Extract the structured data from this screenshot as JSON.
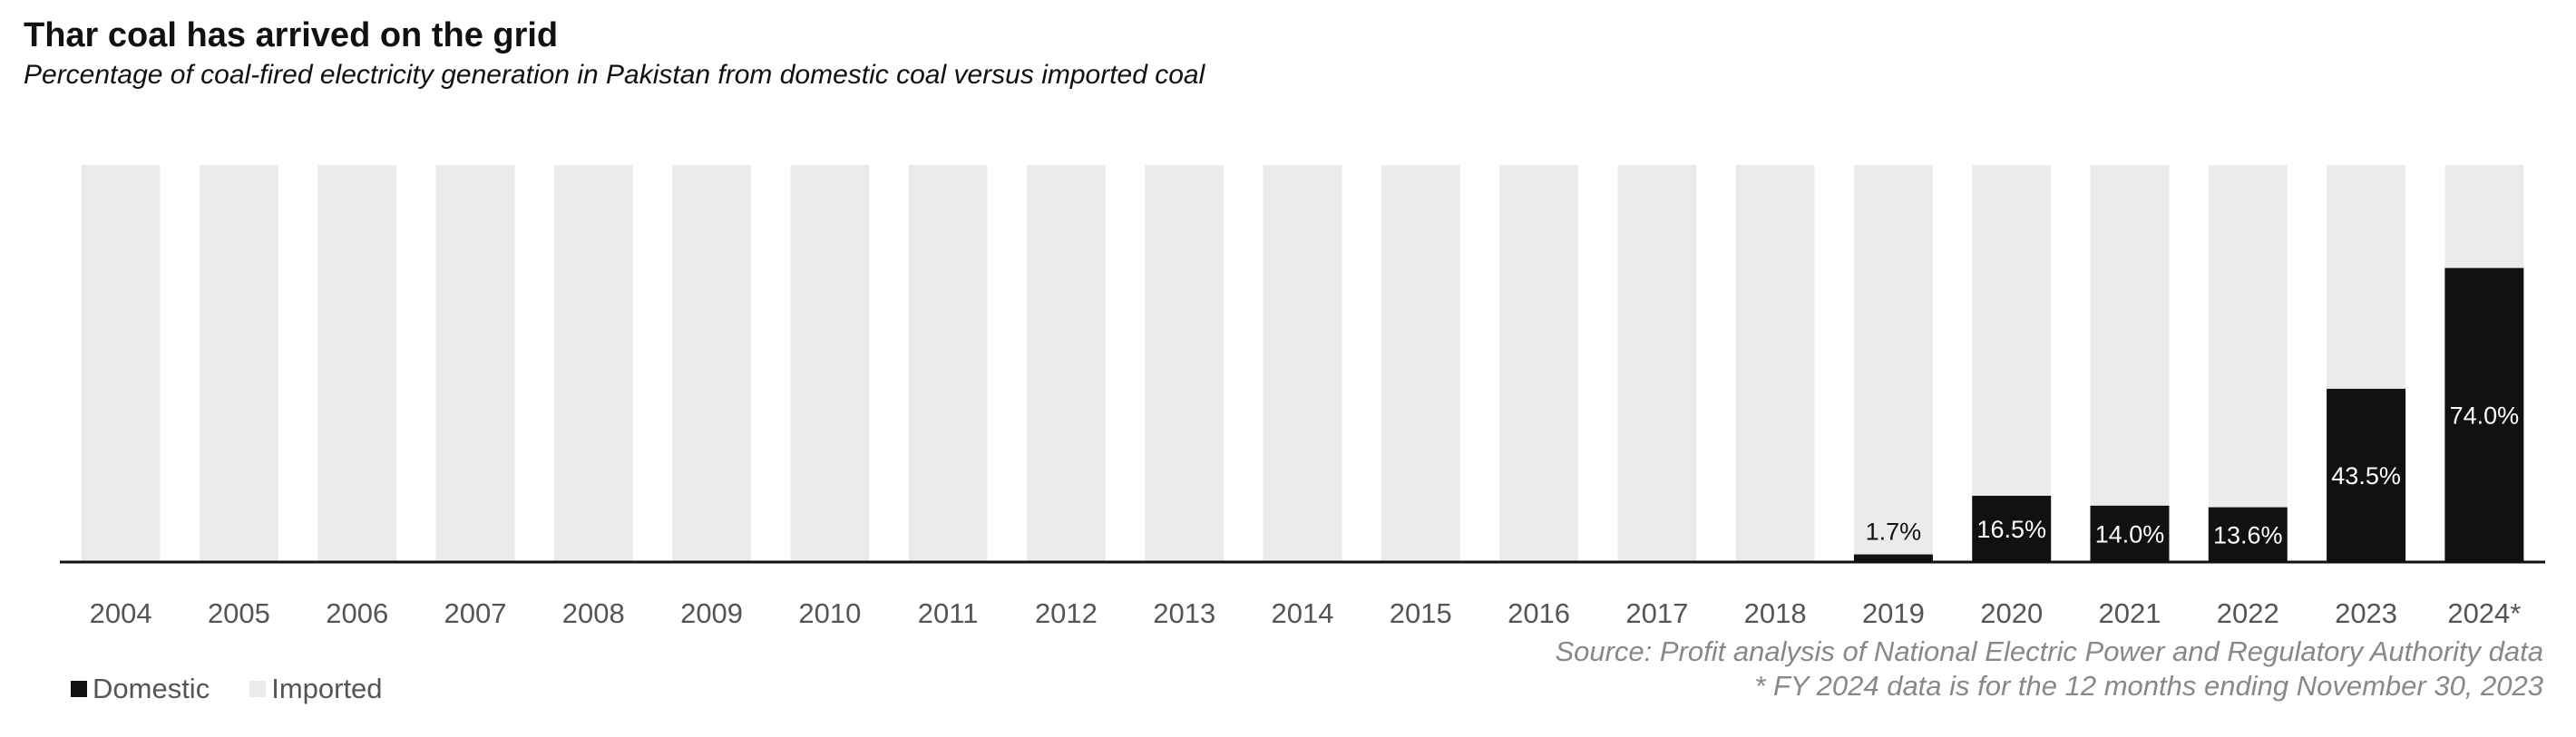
{
  "title": "Thar coal has arrived on the grid",
  "subtitle": "Percentage of coal-fired electricity generation in Pakistan from domestic coal versus imported coal",
  "source_line1": "Source: Profit analysis of National Electric Power and Regulatory Authority data",
  "source_line2": "* FY 2024 data is for the 12 months ending November 30, 2023",
  "legend": [
    {
      "label": "Domestic",
      "color": "#111111"
    },
    {
      "label": "Imported",
      "color": "#ebebeb"
    }
  ],
  "chart_data": {
    "type": "bar",
    "stacked": true,
    "categories": [
      "2004",
      "2005",
      "2006",
      "2007",
      "2008",
      "2009",
      "2010",
      "2011",
      "2012",
      "2013",
      "2014",
      "2015",
      "2016",
      "2017",
      "2018",
      "2019",
      "2020",
      "2021",
      "2022",
      "2023",
      "2024*"
    ],
    "ylim": [
      0,
      100
    ],
    "series": [
      {
        "name": "Domestic",
        "color": "#111111",
        "values": [
          0,
          0,
          0,
          0,
          0,
          0,
          0,
          0,
          0,
          0,
          0,
          0,
          0,
          0,
          0,
          1.7,
          16.5,
          14.0,
          13.6,
          43.5,
          74.0
        ]
      },
      {
        "name": "Imported",
        "color": "#ebebeb",
        "values": [
          100,
          100,
          100,
          100,
          100,
          100,
          100,
          100,
          100,
          100,
          100,
          100,
          100,
          100,
          100,
          98.3,
          83.5,
          86.0,
          86.4,
          56.5,
          26.0
        ]
      }
    ],
    "data_labels": [
      "",
      "",
      "",
      "",
      "",
      "",
      "",
      "",
      "",
      "",
      "",
      "",
      "",
      "",
      "",
      "1.7%",
      "16.5%",
      "14.0%",
      "13.6%",
      "43.5%",
      "74.0%"
    ],
    "legend_position": "bottom-left",
    "grid": false
  }
}
